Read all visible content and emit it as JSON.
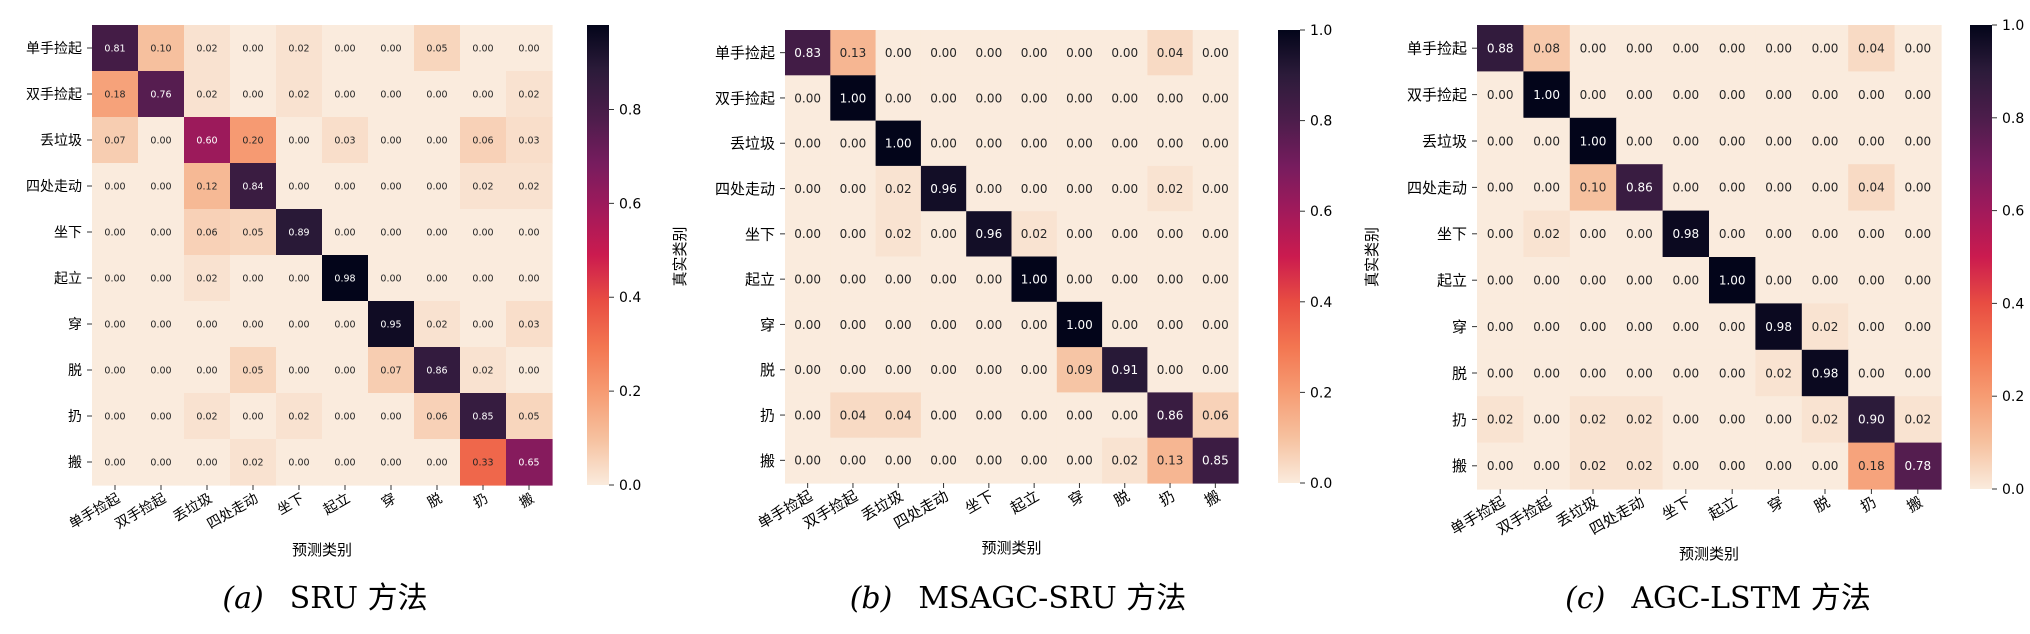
{
  "colorbar_ticks": [
    "0.0",
    "0.2",
    "0.4",
    "0.6",
    "0.8",
    "1.0"
  ],
  "chart_data": [
    {
      "type": "heatmap",
      "caption_letter": "(a)",
      "caption_text": "SRU 方法",
      "xlabel": "预测类别",
      "ylabel": "真实类别",
      "categories": [
        "单手捡起",
        "双手捡起",
        "丢垃圾",
        "四处走动",
        "坐下",
        "起立",
        "穿",
        "脱",
        "扔",
        "搬"
      ],
      "colorbar_ticks": [
        "0.0",
        "0.2",
        "0.4",
        "0.6",
        "0.8"
      ],
      "vmin": 0,
      "vmax": 0.98,
      "values": [
        [
          0.81,
          0.1,
          0.02,
          0.0,
          0.02,
          0.0,
          0.0,
          0.05,
          0.0,
          0.0
        ],
        [
          0.18,
          0.76,
          0.02,
          0.0,
          0.02,
          0.0,
          0.0,
          0.0,
          0.0,
          0.02
        ],
        [
          0.07,
          0.0,
          0.6,
          0.2,
          0.0,
          0.03,
          0.0,
          0.0,
          0.06,
          0.03
        ],
        [
          0.0,
          0.0,
          0.12,
          0.84,
          0.0,
          0.0,
          0.0,
          0.0,
          0.02,
          0.02
        ],
        [
          0.0,
          0.0,
          0.06,
          0.05,
          0.89,
          0.0,
          0.0,
          0.0,
          0.0,
          0.0
        ],
        [
          0.0,
          0.0,
          0.02,
          0.0,
          0.0,
          0.98,
          0.0,
          0.0,
          0.0,
          0.0
        ],
        [
          0.0,
          0.0,
          0.0,
          0.0,
          0.0,
          0.0,
          0.95,
          0.02,
          0.0,
          0.03
        ],
        [
          0.0,
          0.0,
          0.0,
          0.05,
          0.0,
          0.0,
          0.07,
          0.86,
          0.02,
          0.0
        ],
        [
          0.0,
          0.0,
          0.02,
          0.0,
          0.02,
          0.0,
          0.0,
          0.06,
          0.85,
          0.05
        ],
        [
          0.0,
          0.0,
          0.0,
          0.02,
          0.0,
          0.0,
          0.0,
          0.0,
          0.33,
          0.65
        ]
      ]
    },
    {
      "type": "heatmap",
      "caption_letter": "(b)",
      "caption_text": "MSAGC-SRU 方法",
      "xlabel": "预测类别",
      "ylabel": "真实类别",
      "categories": [
        "单手捡起",
        "双手捡起",
        "丢垃圾",
        "四处走动",
        "坐下",
        "起立",
        "穿",
        "脱",
        "扔",
        "搬"
      ],
      "colorbar_ticks": [
        "0.0",
        "0.2",
        "0.4",
        "0.6",
        "0.8",
        "1.0"
      ],
      "vmin": 0,
      "vmax": 1.0,
      "values": [
        [
          0.83,
          0.13,
          0.0,
          0.0,
          0.0,
          0.0,
          0.0,
          0.0,
          0.04,
          0.0
        ],
        [
          0.0,
          1.0,
          0.0,
          0.0,
          0.0,
          0.0,
          0.0,
          0.0,
          0.0,
          0.0
        ],
        [
          0.0,
          0.0,
          1.0,
          0.0,
          0.0,
          0.0,
          0.0,
          0.0,
          0.0,
          0.0
        ],
        [
          0.0,
          0.0,
          0.02,
          0.96,
          0.0,
          0.0,
          0.0,
          0.0,
          0.02,
          0.0
        ],
        [
          0.0,
          0.0,
          0.02,
          0.0,
          0.96,
          0.02,
          0.0,
          0.0,
          0.0,
          0.0
        ],
        [
          0.0,
          0.0,
          0.0,
          0.0,
          0.0,
          1.0,
          0.0,
          0.0,
          0.0,
          0.0
        ],
        [
          0.0,
          0.0,
          0.0,
          0.0,
          0.0,
          0.0,
          1.0,
          0.0,
          0.0,
          0.0
        ],
        [
          0.0,
          0.0,
          0.0,
          0.0,
          0.0,
          0.0,
          0.09,
          0.91,
          0.0,
          0.0
        ],
        [
          0.0,
          0.04,
          0.04,
          0.0,
          0.0,
          0.0,
          0.0,
          0.0,
          0.86,
          0.06
        ],
        [
          0.0,
          0.0,
          0.0,
          0.0,
          0.0,
          0.0,
          0.0,
          0.02,
          0.13,
          0.85
        ]
      ]
    },
    {
      "type": "heatmap",
      "caption_letter": "(c)",
      "caption_text": "AGC-LSTM 方法",
      "xlabel": "预测类别",
      "ylabel": "真实类别",
      "categories": [
        "单手捡起",
        "双手捡起",
        "丢垃圾",
        "四处走动",
        "坐下",
        "起立",
        "穿",
        "脱",
        "扔",
        "搬"
      ],
      "colorbar_ticks": [
        "0.0",
        "0.2",
        "0.4",
        "0.6",
        "0.8",
        "1.0"
      ],
      "vmin": 0,
      "vmax": 1.0,
      "values": [
        [
          0.88,
          0.08,
          0.0,
          0.0,
          0.0,
          0.0,
          0.0,
          0.0,
          0.04,
          0.0
        ],
        [
          0.0,
          1.0,
          0.0,
          0.0,
          0.0,
          0.0,
          0.0,
          0.0,
          0.0,
          0.0
        ],
        [
          0.0,
          0.0,
          1.0,
          0.0,
          0.0,
          0.0,
          0.0,
          0.0,
          0.0,
          0.0
        ],
        [
          0.0,
          0.0,
          0.1,
          0.86,
          0.0,
          0.0,
          0.0,
          0.0,
          0.04,
          0.0
        ],
        [
          0.0,
          0.02,
          0.0,
          0.0,
          0.98,
          0.0,
          0.0,
          0.0,
          0.0,
          0.0
        ],
        [
          0.0,
          0.0,
          0.0,
          0.0,
          0.0,
          1.0,
          0.0,
          0.0,
          0.0,
          0.0
        ],
        [
          0.0,
          0.0,
          0.0,
          0.0,
          0.0,
          0.0,
          0.98,
          0.02,
          0.0,
          0.0
        ],
        [
          0.0,
          0.0,
          0.0,
          0.0,
          0.0,
          0.0,
          0.02,
          0.98,
          0.0,
          0.0
        ],
        [
          0.02,
          0.0,
          0.02,
          0.02,
          0.0,
          0.0,
          0.0,
          0.02,
          0.9,
          0.02
        ],
        [
          0.0,
          0.0,
          0.02,
          0.02,
          0.0,
          0.0,
          0.0,
          0.0,
          0.18,
          0.78
        ]
      ]
    }
  ]
}
